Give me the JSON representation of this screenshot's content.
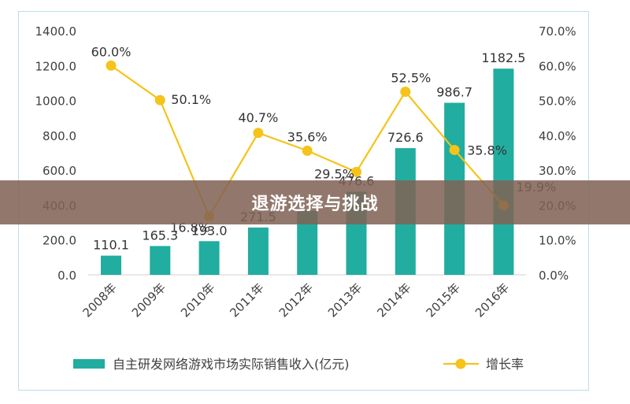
{
  "banner": {
    "title": "退游选择与挑战"
  },
  "colors": {
    "bar": "#21ada0",
    "line": "#f5c31a",
    "frame": "#b9dfe6",
    "banner": "#806254"
  },
  "chart_data": {
    "type": "bar",
    "categories": [
      "2008年",
      "2009年",
      "2010年",
      "2011年",
      "2012年",
      "2013年",
      "2014年",
      "2015年",
      "2016年"
    ],
    "series": [
      {
        "name": "自主研发网络游戏市场实际销售收入(亿元)",
        "type": "bar",
        "axis": "left",
        "values": [
          110.1,
          165.3,
          193.0,
          271.5,
          368.1,
          476.6,
          726.6,
          986.7,
          1182.5
        ],
        "labels": [
          "110.1",
          "165.3",
          "193.0",
          "271.5",
          "",
          "476.6",
          "726.6",
          "986.7",
          "1182.5"
        ]
      },
      {
        "name": "增长率",
        "type": "line",
        "axis": "right",
        "values": [
          60.0,
          50.1,
          16.8,
          40.7,
          35.6,
          29.5,
          52.5,
          35.8,
          19.9
        ],
        "labels": [
          "60.0%",
          "50.1%",
          "16.8%",
          "40.7%",
          "35.6%",
          "29.5%",
          "52.5%",
          "35.8%",
          "19.9%"
        ]
      }
    ],
    "y_left": {
      "min": 0,
      "max": 1400,
      "ticks": [
        "0.0",
        "200.0",
        "400.0",
        "600.0",
        "800.0",
        "1000.0",
        "1200.0",
        "1400.0"
      ]
    },
    "y_right": {
      "min": 0,
      "max": 70,
      "ticks": [
        "0.0%",
        "10.0%",
        "20.0%",
        "30.0%",
        "40.0%",
        "50.0%",
        "60.0%",
        "70.0%"
      ]
    },
    "legend_position": "bottom",
    "grid": false
  }
}
